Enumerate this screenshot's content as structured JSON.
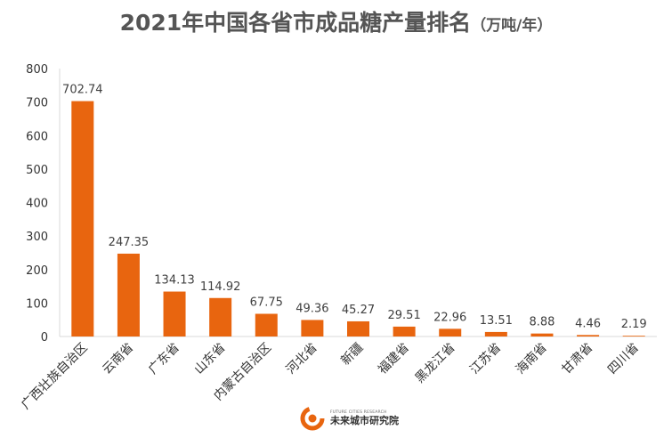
{
  "title": {
    "main": "2021年中国各省市成品糖产量排名",
    "unit": "（万吨/年）"
  },
  "chart_data": {
    "type": "bar",
    "title": "2021年中国各省市成品糖产量排名（万吨/年）",
    "categories": [
      "广西壮族自治区",
      "云南省",
      "广东省",
      "山东省",
      "内蒙古自治区",
      "河北省",
      "新疆",
      "福建省",
      "黑龙江省",
      "江苏省",
      "海南省",
      "甘肃省",
      "四川省"
    ],
    "values": [
      702.74,
      247.35,
      134.13,
      114.92,
      67.75,
      49.36,
      45.27,
      29.51,
      22.96,
      13.51,
      8.88,
      4.46,
      2.19
    ],
    "value_labels": [
      "702.74",
      "247.35",
      "134.13",
      "114.92",
      "67.75",
      "49.36",
      "45.27",
      "29.51",
      "22.96",
      "13.51",
      "8.88",
      "4.46",
      "2.19"
    ],
    "y_ticks": [
      "0",
      "100",
      "200",
      "300",
      "400",
      "500",
      "600",
      "700",
      "800"
    ],
    "ylim": [
      0,
      800
    ],
    "grid": false,
    "bar_color": "#e8650f",
    "axis_color": "#d9d9d9"
  },
  "watermark": {
    "name_en": "FUTURE CITIES RESEARCH",
    "name_cn": "未来城市研究院"
  }
}
